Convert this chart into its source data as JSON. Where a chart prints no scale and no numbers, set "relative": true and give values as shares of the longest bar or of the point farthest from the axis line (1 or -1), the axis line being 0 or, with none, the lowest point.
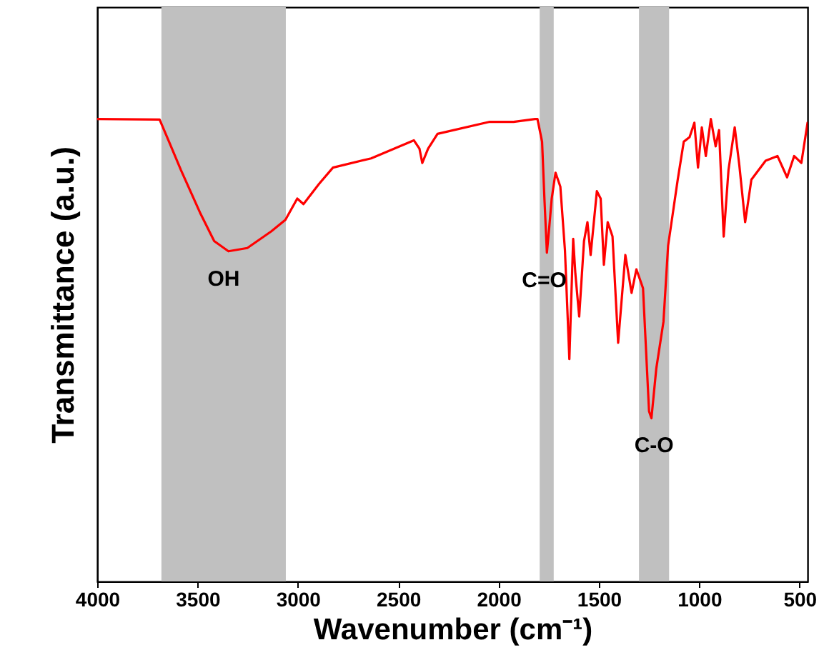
{
  "chart_data": {
    "type": "line",
    "xlabel": "Wavenumber (cm⁻¹)",
    "ylabel": "Transmittance (a.u.)",
    "relative": true,
    "xlim": [
      4000,
      460
    ],
    "xticks": [
      4000,
      3500,
      3000,
      2500,
      2000,
      1500,
      1000,
      500
    ],
    "x": [
      4000,
      3689,
      3642,
      3583,
      3488,
      3417,
      3346,
      3252,
      3133,
      3062,
      3003,
      2972,
      2896,
      2825,
      2635,
      2422,
      2394,
      2380,
      2351,
      2304,
      2044,
      1925,
      1818,
      1806,
      1783,
      1771,
      1759,
      1747,
      1735,
      1716,
      1692,
      1669,
      1647,
      1628,
      1617,
      1598,
      1574,
      1557,
      1541,
      1510,
      1491,
      1475,
      1456,
      1432,
      1404,
      1368,
      1337,
      1313,
      1280,
      1250,
      1238,
      1214,
      1178,
      1155,
      1107,
      1077,
      1048,
      1024,
      1006,
      987,
      967,
      942,
      918,
      901,
      878,
      854,
      823,
      800,
      771,
      740,
      669,
      610,
      562,
      527,
      491,
      460
    ],
    "series": [
      {
        "color": "#ff0000",
        "values": [
          1.0,
          0.999,
          0.951,
          0.89,
          0.798,
          0.736,
          0.714,
          0.721,
          0.757,
          0.782,
          0.828,
          0.816,
          0.859,
          0.895,
          0.915,
          0.954,
          0.936,
          0.905,
          0.936,
          0.968,
          0.994,
          0.994,
          1.0,
          1.0,
          0.951,
          0.825,
          0.711,
          0.767,
          0.828,
          0.884,
          0.854,
          0.716,
          0.481,
          0.741,
          0.665,
          0.573,
          0.736,
          0.777,
          0.706,
          0.844,
          0.828,
          0.685,
          0.777,
          0.746,
          0.516,
          0.706,
          0.624,
          0.675,
          0.634,
          0.368,
          0.353,
          0.46,
          0.562,
          0.726,
          0.869,
          0.951,
          0.961,
          0.992,
          0.895,
          0.982,
          0.92,
          1.0,
          0.941,
          0.976,
          0.746,
          0.89,
          0.982,
          0.9,
          0.777,
          0.869,
          0.91,
          0.92,
          0.874,
          0.92,
          0.905,
          0.992
        ]
      }
    ],
    "bands": [
      {
        "axis": "x",
        "from": 3680,
        "to": 3060,
        "color": "#c0c0c0",
        "label": "OH"
      },
      {
        "axis": "x",
        "from": 1795,
        "to": 1725,
        "color": "#c0c0c0",
        "label": "C=O"
      },
      {
        "axis": "x",
        "from": 1300,
        "to": 1150,
        "color": "#c0c0c0",
        "label": "C-O"
      }
    ]
  }
}
